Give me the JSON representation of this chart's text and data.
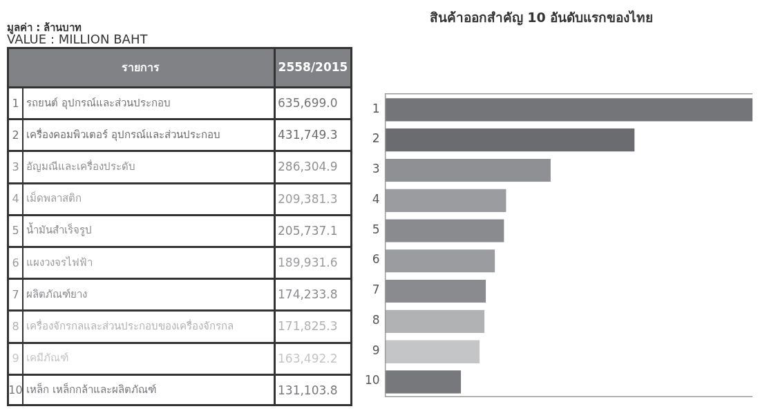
{
  "chart_data": {
    "type": "bar",
    "orientation": "horizontal",
    "title": "สินค้าออกสำคัญ 10 อันดับแรกของไทย",
    "categories": [
      "1",
      "2",
      "3",
      "4",
      "5",
      "6",
      "7",
      "8",
      "9",
      "10"
    ],
    "values": [
      635699.0,
      431749.3,
      286304.9,
      209381.3,
      205737.1,
      189931.6,
      174233.8,
      171825.3,
      163492.2,
      131103.8
    ],
    "value_labels": [
      "635,699.0",
      "431,749.3",
      "286,304.9",
      "209,381.3",
      "205,737.1",
      "189,931.6",
      "174,233.8",
      "171,825.3",
      "163,492.2",
      "131,103.8"
    ],
    "colors": [
      "#747578",
      "#6b6c70",
      "#8f9094",
      "#9a9c9f",
      "#8a8b8e",
      "#9a9c9f",
      "#8a8b8e",
      "#b1b2b4",
      "#c4c5c7",
      "#77787c"
    ],
    "annotations": [
      "มูลค่า : ล้านบาท",
      "VALUE : MILLION BAHT",
      "รายการ",
      "2558/2015",
      "รถยนต์ อุปกรณ์และส่วนประกอบ",
      "เครื่องคอมพิวเตอร์ อุปกรณ์และส่วนประกอบ",
      "อัญมณีและเครื่องประดับ",
      "เม็ดพลาสติก",
      "น้ำมันสำเร็จรูป",
      "แผงวงจรไฟฟ้า",
      "ผลิตภัณฑ์ยาง",
      "เครื่องจักรกลและส่วนประกอบของเครื่องจักรกล",
      "เคมีภัณฑ์",
      "เหล็ก เหล็กกล้าและผลิตภัณฑ์"
    ],
    "legend": false,
    "grid": false
  }
}
